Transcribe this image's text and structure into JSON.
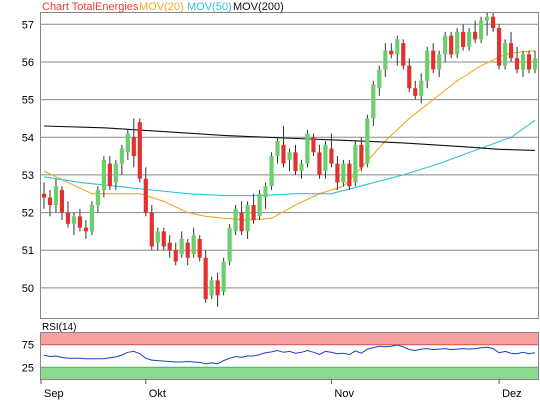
{
  "legend": [
    {
      "label": "Chart TotalEnergies",
      "color": "#ef3b2c"
    },
    {
      "label": "MOV(20)",
      "color": "#f5a623"
    },
    {
      "label": "MOV(50)",
      "color": "#2ec4d6"
    },
    {
      "label": "MOV(200)",
      "color": "#111111"
    }
  ],
  "rsi_label": "RSI(14)",
  "colors": {
    "up": "#6ccf6c",
    "down": "#e63030",
    "grid": "#888888",
    "rsi_line": "#1e3fbf",
    "rsi_high_band": "#f6a0a0",
    "rsi_low_band": "#8fd88f"
  },
  "chart_data": [
    {
      "type": "candlestick",
      "y_ticks": [
        50,
        51,
        52,
        53,
        54,
        55,
        56,
        57
      ],
      "ylim": [
        49.2,
        57.3
      ],
      "x_ticks": [
        {
          "index": 0,
          "label": "Sep"
        },
        {
          "index": 17,
          "label": "Okt"
        },
        {
          "index": 48,
          "label": "Nov"
        },
        {
          "index": 76,
          "label": "Dez"
        }
      ],
      "candles": [
        [
          52.5,
          52.8,
          52.1,
          52.4
        ],
        [
          52.4,
          52.6,
          51.9,
          52.2
        ],
        [
          52.2,
          52.9,
          52.0,
          52.7
        ],
        [
          52.6,
          52.7,
          51.8,
          52.0
        ],
        [
          52.0,
          52.3,
          51.6,
          51.7
        ],
        [
          51.7,
          52.0,
          51.4,
          51.9
        ],
        [
          51.9,
          52.1,
          51.5,
          51.6
        ],
        [
          51.6,
          51.8,
          51.3,
          51.5
        ],
        [
          51.5,
          52.3,
          51.4,
          52.2
        ],
        [
          52.2,
          52.7,
          52.0,
          52.6
        ],
        [
          52.6,
          53.5,
          52.4,
          53.4
        ],
        [
          53.3,
          53.5,
          52.6,
          52.7
        ],
        [
          52.8,
          53.4,
          52.6,
          53.3
        ],
        [
          53.3,
          53.8,
          53.0,
          53.7
        ],
        [
          53.6,
          54.2,
          53.4,
          54.1
        ],
        [
          54.0,
          54.5,
          53.2,
          53.5
        ],
        [
          54.4,
          54.5,
          52.8,
          52.9
        ],
        [
          52.9,
          53.2,
          51.9,
          52.0
        ],
        [
          52.0,
          52.2,
          51.0,
          51.1
        ],
        [
          51.2,
          51.6,
          51.0,
          51.5
        ],
        [
          51.5,
          51.6,
          51.0,
          51.1
        ],
        [
          51.2,
          51.4,
          50.8,
          51.0
        ],
        [
          51.0,
          51.2,
          50.6,
          50.7
        ],
        [
          50.9,
          51.5,
          50.8,
          51.3
        ],
        [
          51.2,
          51.3,
          50.6,
          50.8
        ],
        [
          50.9,
          51.6,
          50.8,
          51.4
        ],
        [
          51.3,
          51.4,
          50.7,
          50.8
        ],
        [
          50.8,
          51.0,
          49.6,
          49.7
        ],
        [
          49.8,
          50.3,
          49.7,
          50.2
        ],
        [
          50.2,
          50.4,
          49.5,
          49.8
        ],
        [
          49.9,
          50.8,
          49.8,
          50.7
        ],
        [
          50.7,
          51.7,
          50.6,
          51.6
        ],
        [
          51.5,
          52.2,
          51.4,
          52.1
        ],
        [
          52.0,
          52.3,
          51.4,
          51.5
        ],
        [
          51.5,
          52.3,
          51.3,
          52.2
        ],
        [
          52.2,
          52.5,
          51.7,
          51.8
        ],
        [
          51.9,
          52.6,
          51.8,
          52.5
        ],
        [
          52.4,
          52.8,
          52.1,
          52.7
        ],
        [
          52.7,
          53.6,
          52.6,
          53.5
        ],
        [
          53.5,
          54.0,
          53.3,
          53.9
        ],
        [
          53.8,
          54.3,
          53.2,
          53.3
        ],
        [
          53.4,
          53.7,
          53.1,
          53.6
        ],
        [
          53.6,
          53.8,
          53.0,
          53.1
        ],
        [
          53.1,
          53.4,
          52.9,
          53.3
        ],
        [
          53.3,
          54.2,
          53.2,
          54.1
        ],
        [
          54.0,
          54.1,
          53.5,
          53.6
        ],
        [
          53.6,
          53.8,
          52.9,
          53.0
        ],
        [
          53.1,
          53.9,
          52.9,
          53.8
        ],
        [
          53.7,
          54.1,
          53.2,
          53.3
        ],
        [
          53.3,
          53.5,
          52.6,
          52.8
        ],
        [
          52.8,
          53.4,
          52.7,
          53.3
        ],
        [
          53.3,
          53.4,
          52.6,
          52.7
        ],
        [
          52.8,
          53.9,
          52.7,
          53.8
        ],
        [
          53.8,
          54.0,
          53.1,
          53.2
        ],
        [
          53.3,
          54.6,
          53.2,
          54.5
        ],
        [
          54.5,
          55.5,
          54.3,
          55.4
        ],
        [
          55.3,
          55.9,
          55.1,
          55.8
        ],
        [
          55.8,
          56.5,
          55.6,
          56.3
        ],
        [
          56.3,
          56.5,
          56.1,
          56.2
        ],
        [
          56.2,
          56.7,
          55.9,
          56.6
        ],
        [
          56.5,
          56.6,
          55.8,
          55.9
        ],
        [
          55.9,
          56.1,
          55.2,
          55.3
        ],
        [
          55.3,
          55.5,
          55.0,
          55.1
        ],
        [
          55.1,
          55.7,
          54.9,
          55.5
        ],
        [
          55.5,
          56.4,
          55.3,
          56.3
        ],
        [
          56.3,
          56.5,
          55.7,
          55.8
        ],
        [
          55.8,
          56.3,
          55.6,
          56.2
        ],
        [
          56.2,
          56.8,
          56.0,
          56.7
        ],
        [
          56.7,
          56.8,
          56.1,
          56.2
        ],
        [
          56.2,
          56.9,
          56.1,
          56.8
        ],
        [
          56.8,
          57.0,
          56.3,
          56.4
        ],
        [
          56.4,
          56.9,
          56.3,
          56.8
        ],
        [
          56.8,
          57.1,
          56.5,
          56.6
        ],
        [
          56.6,
          57.2,
          56.5,
          57.1
        ],
        [
          57.1,
          57.3,
          56.7,
          57.2
        ],
        [
          57.2,
          57.3,
          56.8,
          56.9
        ],
        [
          56.9,
          57.0,
          55.8,
          55.9
        ],
        [
          55.9,
          56.6,
          55.8,
          56.5
        ],
        [
          56.5,
          56.8,
          56.0,
          56.1
        ],
        [
          56.1,
          56.4,
          55.7,
          55.8
        ],
        [
          55.8,
          56.3,
          55.6,
          56.2
        ],
        [
          56.2,
          56.3,
          55.7,
          55.8
        ],
        [
          55.8,
          56.3,
          55.7,
          56.1
        ]
      ],
      "moving_averages": [
        {
          "name": "MOV(20)",
          "color": "#f5a623",
          "points": [
            [
              0,
              53.1
            ],
            [
              4,
              52.8
            ],
            [
              8,
              52.5
            ],
            [
              12,
              52.5
            ],
            [
              16,
              52.5
            ],
            [
              20,
              52.3
            ],
            [
              24,
              52.0
            ],
            [
              27,
              51.9
            ],
            [
              30,
              51.85
            ],
            [
              34,
              51.8
            ],
            [
              38,
              51.85
            ],
            [
              42,
              52.2
            ],
            [
              46,
              52.5
            ],
            [
              50,
              52.7
            ],
            [
              53,
              53.2
            ],
            [
              57,
              53.9
            ],
            [
              61,
              54.5
            ],
            [
              65,
              55.0
            ],
            [
              69,
              55.5
            ],
            [
              73,
              55.9
            ],
            [
              77,
              56.2
            ],
            [
              79,
              56.25
            ],
            [
              82,
              56.3
            ]
          ]
        },
        {
          "name": "MOV(50)",
          "color": "#2ec4d6",
          "points": [
            [
              0,
              52.95
            ],
            [
              6,
              52.8
            ],
            [
              12,
              52.7
            ],
            [
              18,
              52.6
            ],
            [
              24,
              52.5
            ],
            [
              30,
              52.45
            ],
            [
              36,
              52.45
            ],
            [
              42,
              52.5
            ],
            [
              48,
              52.5
            ],
            [
              54,
              52.75
            ],
            [
              60,
              53.0
            ],
            [
              66,
              53.3
            ],
            [
              72,
              53.65
            ],
            [
              78,
              54.0
            ],
            [
              82,
              54.45
            ]
          ]
        },
        {
          "name": "MOV(200)",
          "color": "#111111",
          "points": [
            [
              0,
              54.3
            ],
            [
              10,
              54.25
            ],
            [
              20,
              54.15
            ],
            [
              30,
              54.05
            ],
            [
              40,
              53.98
            ],
            [
              50,
              53.92
            ],
            [
              60,
              53.85
            ],
            [
              70,
              53.75
            ],
            [
              76,
              53.68
            ],
            [
              82,
              53.65
            ]
          ]
        }
      ]
    },
    {
      "type": "line",
      "name": "RSI(14)",
      "y_ticks": [
        25,
        75
      ],
      "ylim": [
        0,
        100
      ],
      "bands": {
        "upper": [
          75,
          100
        ],
        "lower": [
          0,
          25
        ]
      },
      "values": [
        52,
        49,
        50,
        47,
        45,
        45,
        45,
        44,
        44,
        44,
        44,
        46,
        48,
        52,
        58,
        60,
        55,
        45,
        41,
        40,
        39,
        38,
        37,
        37,
        38,
        37,
        36,
        33,
        35,
        33,
        40,
        45,
        49,
        47,
        50,
        50,
        53,
        57,
        59,
        62,
        58,
        60,
        56,
        58,
        62,
        58,
        53,
        60,
        58,
        55,
        56,
        53,
        61,
        56,
        65,
        68,
        71,
        70,
        71,
        74,
        70,
        64,
        62,
        65,
        66,
        64,
        65,
        66,
        64,
        65,
        66,
        65,
        66,
        68,
        69,
        66,
        57,
        60,
        56,
        55,
        58,
        55,
        57
      ]
    }
  ]
}
